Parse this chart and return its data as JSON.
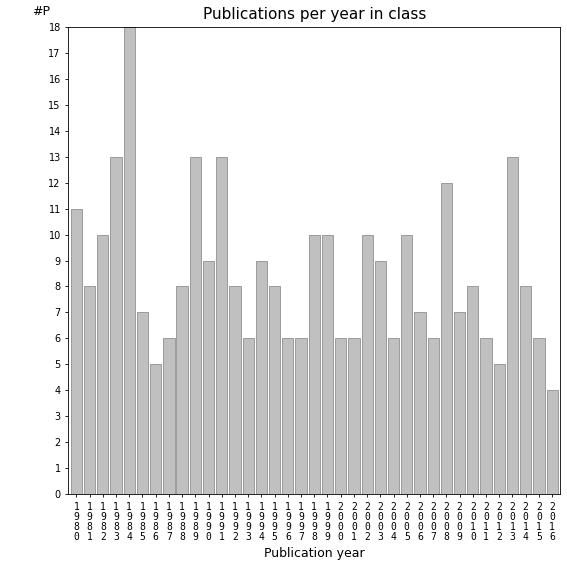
{
  "title": "Publications per year in class",
  "xlabel": "Publication year",
  "ylabel": "#P",
  "years": [
    1980,
    1981,
    1982,
    1983,
    1984,
    1985,
    1986,
    1987,
    1988,
    1989,
    1990,
    1991,
    1992,
    1993,
    1994,
    1995,
    1996,
    1997,
    1998,
    1999,
    2000,
    2001,
    2002,
    2003,
    2004,
    2005,
    2006,
    2007,
    2008,
    2009,
    2010,
    2011,
    2012,
    2013,
    2014,
    2015,
    2016
  ],
  "values": [
    11,
    8,
    10,
    13,
    18,
    7,
    5,
    6,
    8,
    13,
    9,
    13,
    8,
    6,
    9,
    8,
    6,
    6,
    10,
    10,
    6,
    6,
    10,
    9,
    6,
    10,
    7,
    6,
    12,
    7,
    8,
    6,
    5,
    13,
    8,
    6,
    4
  ],
  "bar_color": "#c0c0c0",
  "bar_edge_color": "#808080",
  "background_color": "#ffffff",
  "ylim_max": 18,
  "yticks": [
    0,
    1,
    2,
    3,
    4,
    5,
    6,
    7,
    8,
    9,
    10,
    11,
    12,
    13,
    14,
    15,
    16,
    17,
    18
  ],
  "title_fontsize": 11,
  "label_fontsize": 9,
  "tick_fontsize": 7
}
